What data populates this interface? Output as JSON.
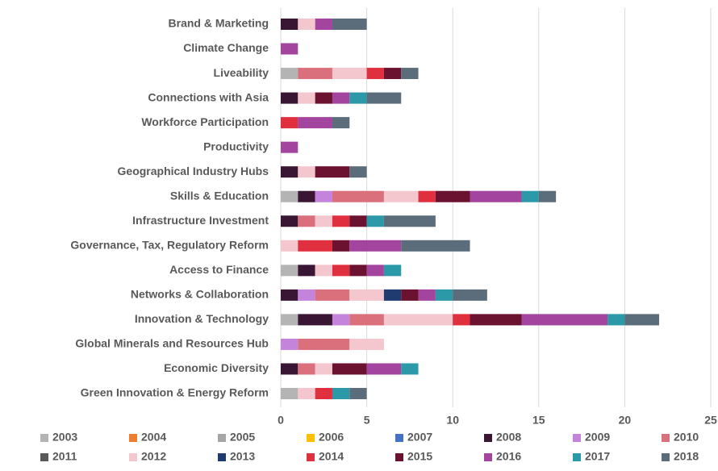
{
  "chart_data": {
    "type": "stacked_barh",
    "categories": [
      "Brand & Marketing",
      "Climate Change",
      "Liveability",
      "Connections with Asia",
      "Workforce Participation",
      "Productivity",
      "Geographical Industry Hubs",
      "Skills & Education",
      "Infrastructure Investment",
      "Governance, Tax, Regulatory Reform",
      "Access to Finance",
      "Networks & Collaboration",
      "Innovation & Technology",
      "Global Minerals and Resources Hub",
      "Economic Diversity",
      "Green Innovation & Energy Reform"
    ],
    "series": [
      {
        "name": "2003",
        "color": "#b4b4b4",
        "values": [
          0,
          0,
          1,
          0,
          0,
          0,
          0,
          1,
          0,
          0,
          1,
          0,
          1,
          0,
          0,
          1
        ]
      },
      {
        "name": "2004",
        "color": "#ed7d31",
        "values": [
          0,
          0,
          0,
          0,
          0,
          0,
          0,
          0,
          0,
          0,
          0,
          0,
          0,
          0,
          0,
          0
        ]
      },
      {
        "name": "2005",
        "color": "#a5a5a5",
        "values": [
          0,
          0,
          0,
          0,
          0,
          0,
          0,
          0,
          0,
          0,
          0,
          0,
          0,
          0,
          0,
          0
        ]
      },
      {
        "name": "2006",
        "color": "#ffc000",
        "values": [
          0,
          0,
          0,
          0,
          0,
          0,
          0,
          0,
          0,
          0,
          0,
          0,
          0,
          0,
          0,
          0
        ]
      },
      {
        "name": "2007",
        "color": "#4472c4",
        "values": [
          0,
          0,
          0,
          0,
          0,
          0,
          0,
          0,
          0,
          0,
          0,
          0,
          0,
          0,
          0,
          0
        ]
      },
      {
        "name": "2008",
        "color": "#3a1635",
        "values": [
          1,
          0,
          0,
          1,
          0,
          0,
          1,
          1,
          1,
          0,
          1,
          1,
          2,
          0,
          1,
          0
        ]
      },
      {
        "name": "2009",
        "color": "#c484dc",
        "values": [
          0,
          0,
          0,
          0,
          0,
          0,
          0,
          1,
          0,
          0,
          0,
          1,
          1,
          1,
          0,
          0
        ]
      },
      {
        "name": "2010",
        "color": "#d9707c",
        "values": [
          0,
          0,
          2,
          0,
          0,
          0,
          0,
          3,
          1,
          0,
          0,
          2,
          2,
          3,
          1,
          0
        ]
      },
      {
        "name": "2011",
        "color": "#595959",
        "values": [
          0,
          0,
          0,
          0,
          0,
          0,
          0,
          0,
          0,
          0,
          0,
          0,
          0,
          0,
          0,
          0
        ]
      },
      {
        "name": "2012",
        "color": "#f4c6cd",
        "values": [
          1,
          0,
          2,
          1,
          0,
          0,
          1,
          2,
          1,
          1,
          1,
          2,
          4,
          2,
          1,
          1
        ]
      },
      {
        "name": "2013",
        "color": "#1f3b70",
        "values": [
          0,
          0,
          0,
          0,
          0,
          0,
          0,
          0,
          0,
          0,
          0,
          1,
          0,
          0,
          0,
          0
        ]
      },
      {
        "name": "2014",
        "color": "#e0303f",
        "values": [
          0,
          0,
          1,
          0,
          1,
          0,
          0,
          1,
          1,
          2,
          1,
          0,
          1,
          0,
          0,
          1
        ]
      },
      {
        "name": "2015",
        "color": "#6a1230",
        "values": [
          0,
          0,
          1,
          1,
          0,
          0,
          2,
          2,
          1,
          1,
          1,
          1,
          3,
          0,
          2,
          0
        ]
      },
      {
        "name": "2016",
        "color": "#a3449f",
        "values": [
          1,
          1,
          0,
          1,
          2,
          1,
          0,
          3,
          0,
          3,
          1,
          1,
          5,
          0,
          2,
          0
        ]
      },
      {
        "name": "2017",
        "color": "#2b99a8",
        "values": [
          0,
          0,
          0,
          1,
          0,
          0,
          0,
          1,
          1,
          0,
          1,
          1,
          1,
          0,
          1,
          1
        ]
      },
      {
        "name": "2018",
        "color": "#5b6c7a",
        "values": [
          2,
          0,
          1,
          2,
          1,
          0,
          1,
          1,
          3,
          4,
          0,
          2,
          2,
          0,
          0,
          1
        ]
      }
    ],
    "xlim": [
      0,
      25
    ],
    "xticks": [
      0,
      5,
      10,
      15,
      20,
      25
    ],
    "grid": true
  }
}
